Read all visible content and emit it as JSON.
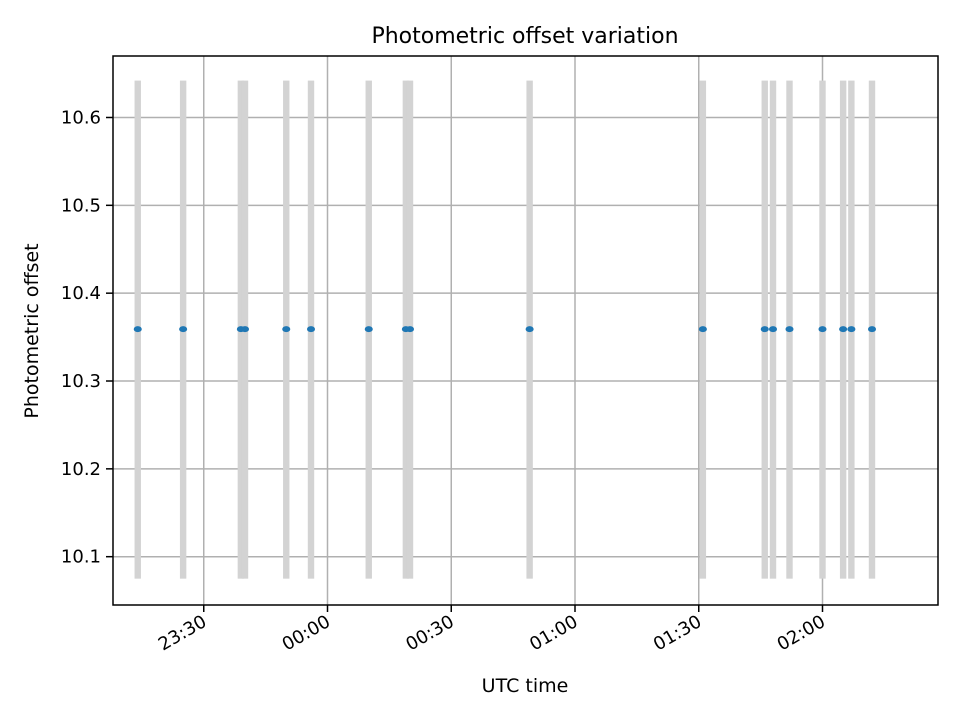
{
  "chart_data": {
    "type": "scatter",
    "title": "Photometric offset variation",
    "xlabel": "UTC time",
    "ylabel": "Photometric offset",
    "x_axis_type": "time",
    "xlim": [
      "23:08",
      "02:28"
    ],
    "ylim": [
      10.045,
      10.67
    ],
    "grid": true,
    "colors": {
      "points": "#1f77b4",
      "bands": "#d3d3d3"
    },
    "x_ticks": [
      "23:30",
      "00:00",
      "00:30",
      "01:00",
      "01:30",
      "02:00"
    ],
    "y_ticks": [
      10.1,
      10.2,
      10.3,
      10.4,
      10.5,
      10.6
    ],
    "band_range": [
      10.075,
      10.642
    ],
    "bands": [
      "23:14",
      "23:25",
      "23:39",
      "23:40",
      "23:50",
      "23:56",
      "00:10",
      "00:19",
      "00:20",
      "00:49",
      "01:31",
      "01:46",
      "01:48",
      "01:52",
      "02:00",
      "02:05",
      "02:07",
      "02:12"
    ],
    "points": [
      {
        "x": "23:14",
        "y": 10.359
      },
      {
        "x": "23:25",
        "y": 10.359
      },
      {
        "x": "23:39",
        "y": 10.359
      },
      {
        "x": "23:40",
        "y": 10.359
      },
      {
        "x": "23:50",
        "y": 10.359
      },
      {
        "x": "23:56",
        "y": 10.359
      },
      {
        "x": "00:10",
        "y": 10.359
      },
      {
        "x": "00:19",
        "y": 10.359
      },
      {
        "x": "00:20",
        "y": 10.359
      },
      {
        "x": "00:49",
        "y": 10.359
      },
      {
        "x": "01:31",
        "y": 10.359
      },
      {
        "x": "01:46",
        "y": 10.359
      },
      {
        "x": "01:48",
        "y": 10.359
      },
      {
        "x": "01:52",
        "y": 10.359
      },
      {
        "x": "02:00",
        "y": 10.359
      },
      {
        "x": "02:05",
        "y": 10.359
      },
      {
        "x": "02:07",
        "y": 10.359
      },
      {
        "x": "02:12",
        "y": 10.359
      }
    ]
  }
}
